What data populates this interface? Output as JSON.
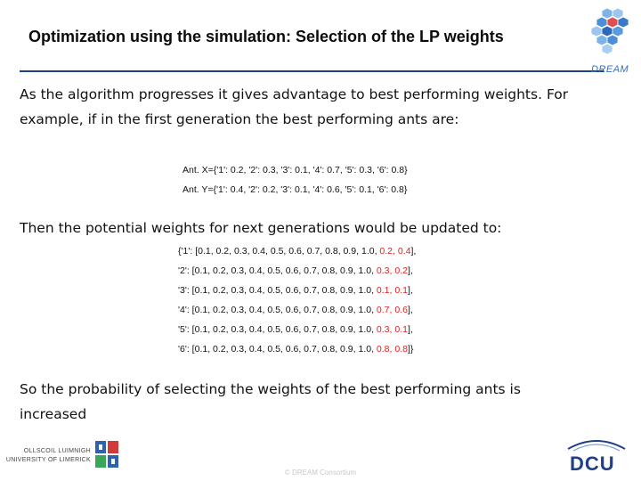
{
  "slide": {
    "title": "Optimization using the simulation: Selection of the LP weights",
    "brand_label": "DREAM",
    "intro_text": "As the algorithm progresses it gives advantage to best performing weights. For example, if in the first generation the best performing ants are:",
    "ants": [
      "Ant. X={'1': 0.2, '2': 0.3, '3': 0.1, '4': 0.7, '5': 0.3, '6': 0.8}",
      "Ant. Y={'1': 0.4, '2': 0.2, '3': 0.1, '4': 0.6, '5': 0.1, '6': 0.8}"
    ],
    "then_text": "Then the potential weights for next generations would be updated to:",
    "weights": [
      {
        "prefix": "{'1': [0.1, 0.2, 0.3, 0.4, 0.5, 0.6, 0.7, 0.8, 0.9, 1.0, ",
        "added": "0.2, 0.4",
        "suffix": "],"
      },
      {
        "prefix": "'2': [0.1, 0.2, 0.3, 0.4, 0.5, 0.6, 0.7, 0.8, 0.9, 1.0, ",
        "added": "0.3, 0.2",
        "suffix": "],"
      },
      {
        "prefix": "'3': [0.1, 0.2, 0.3, 0.4, 0.5, 0.6, 0.7, 0.8, 0.9, 1.0, ",
        "added": "0.1, 0.1",
        "suffix": "],"
      },
      {
        "prefix": "'4': [0.1, 0.2, 0.3, 0.4, 0.5, 0.6, 0.7, 0.8, 0.9, 1.0, ",
        "added": "0.7, 0.6",
        "suffix": "],"
      },
      {
        "prefix": "'5': [0.1, 0.2, 0.3, 0.4, 0.5, 0.6, 0.7, 0.8, 0.9, 1.0, ",
        "added": "0.3, 0.1",
        "suffix": "],"
      },
      {
        "prefix": "'6': [0.1, 0.2, 0.3, 0.4, 0.5, 0.6, 0.7, 0.8, 0.9, 1.0, ",
        "added": "0.8, 0.8",
        "suffix": "]}"
      }
    ],
    "closing_text": "So the probability of selecting the weights of the best performing ants is increased",
    "university_name_line1": "OLLSCOIL LUIMNIGH",
    "university_name_line2": "UNIVERSITY OF LIMERICK",
    "partner_logo_text": "DCU",
    "footer": "© DREAM Consortium"
  },
  "colors": {
    "title_rule": "#1f3f88",
    "highlight": "#dd2222",
    "dcu_blue": "#1f3f88",
    "hex_blue": "#4a90d9",
    "hex_red": "#e05050"
  }
}
